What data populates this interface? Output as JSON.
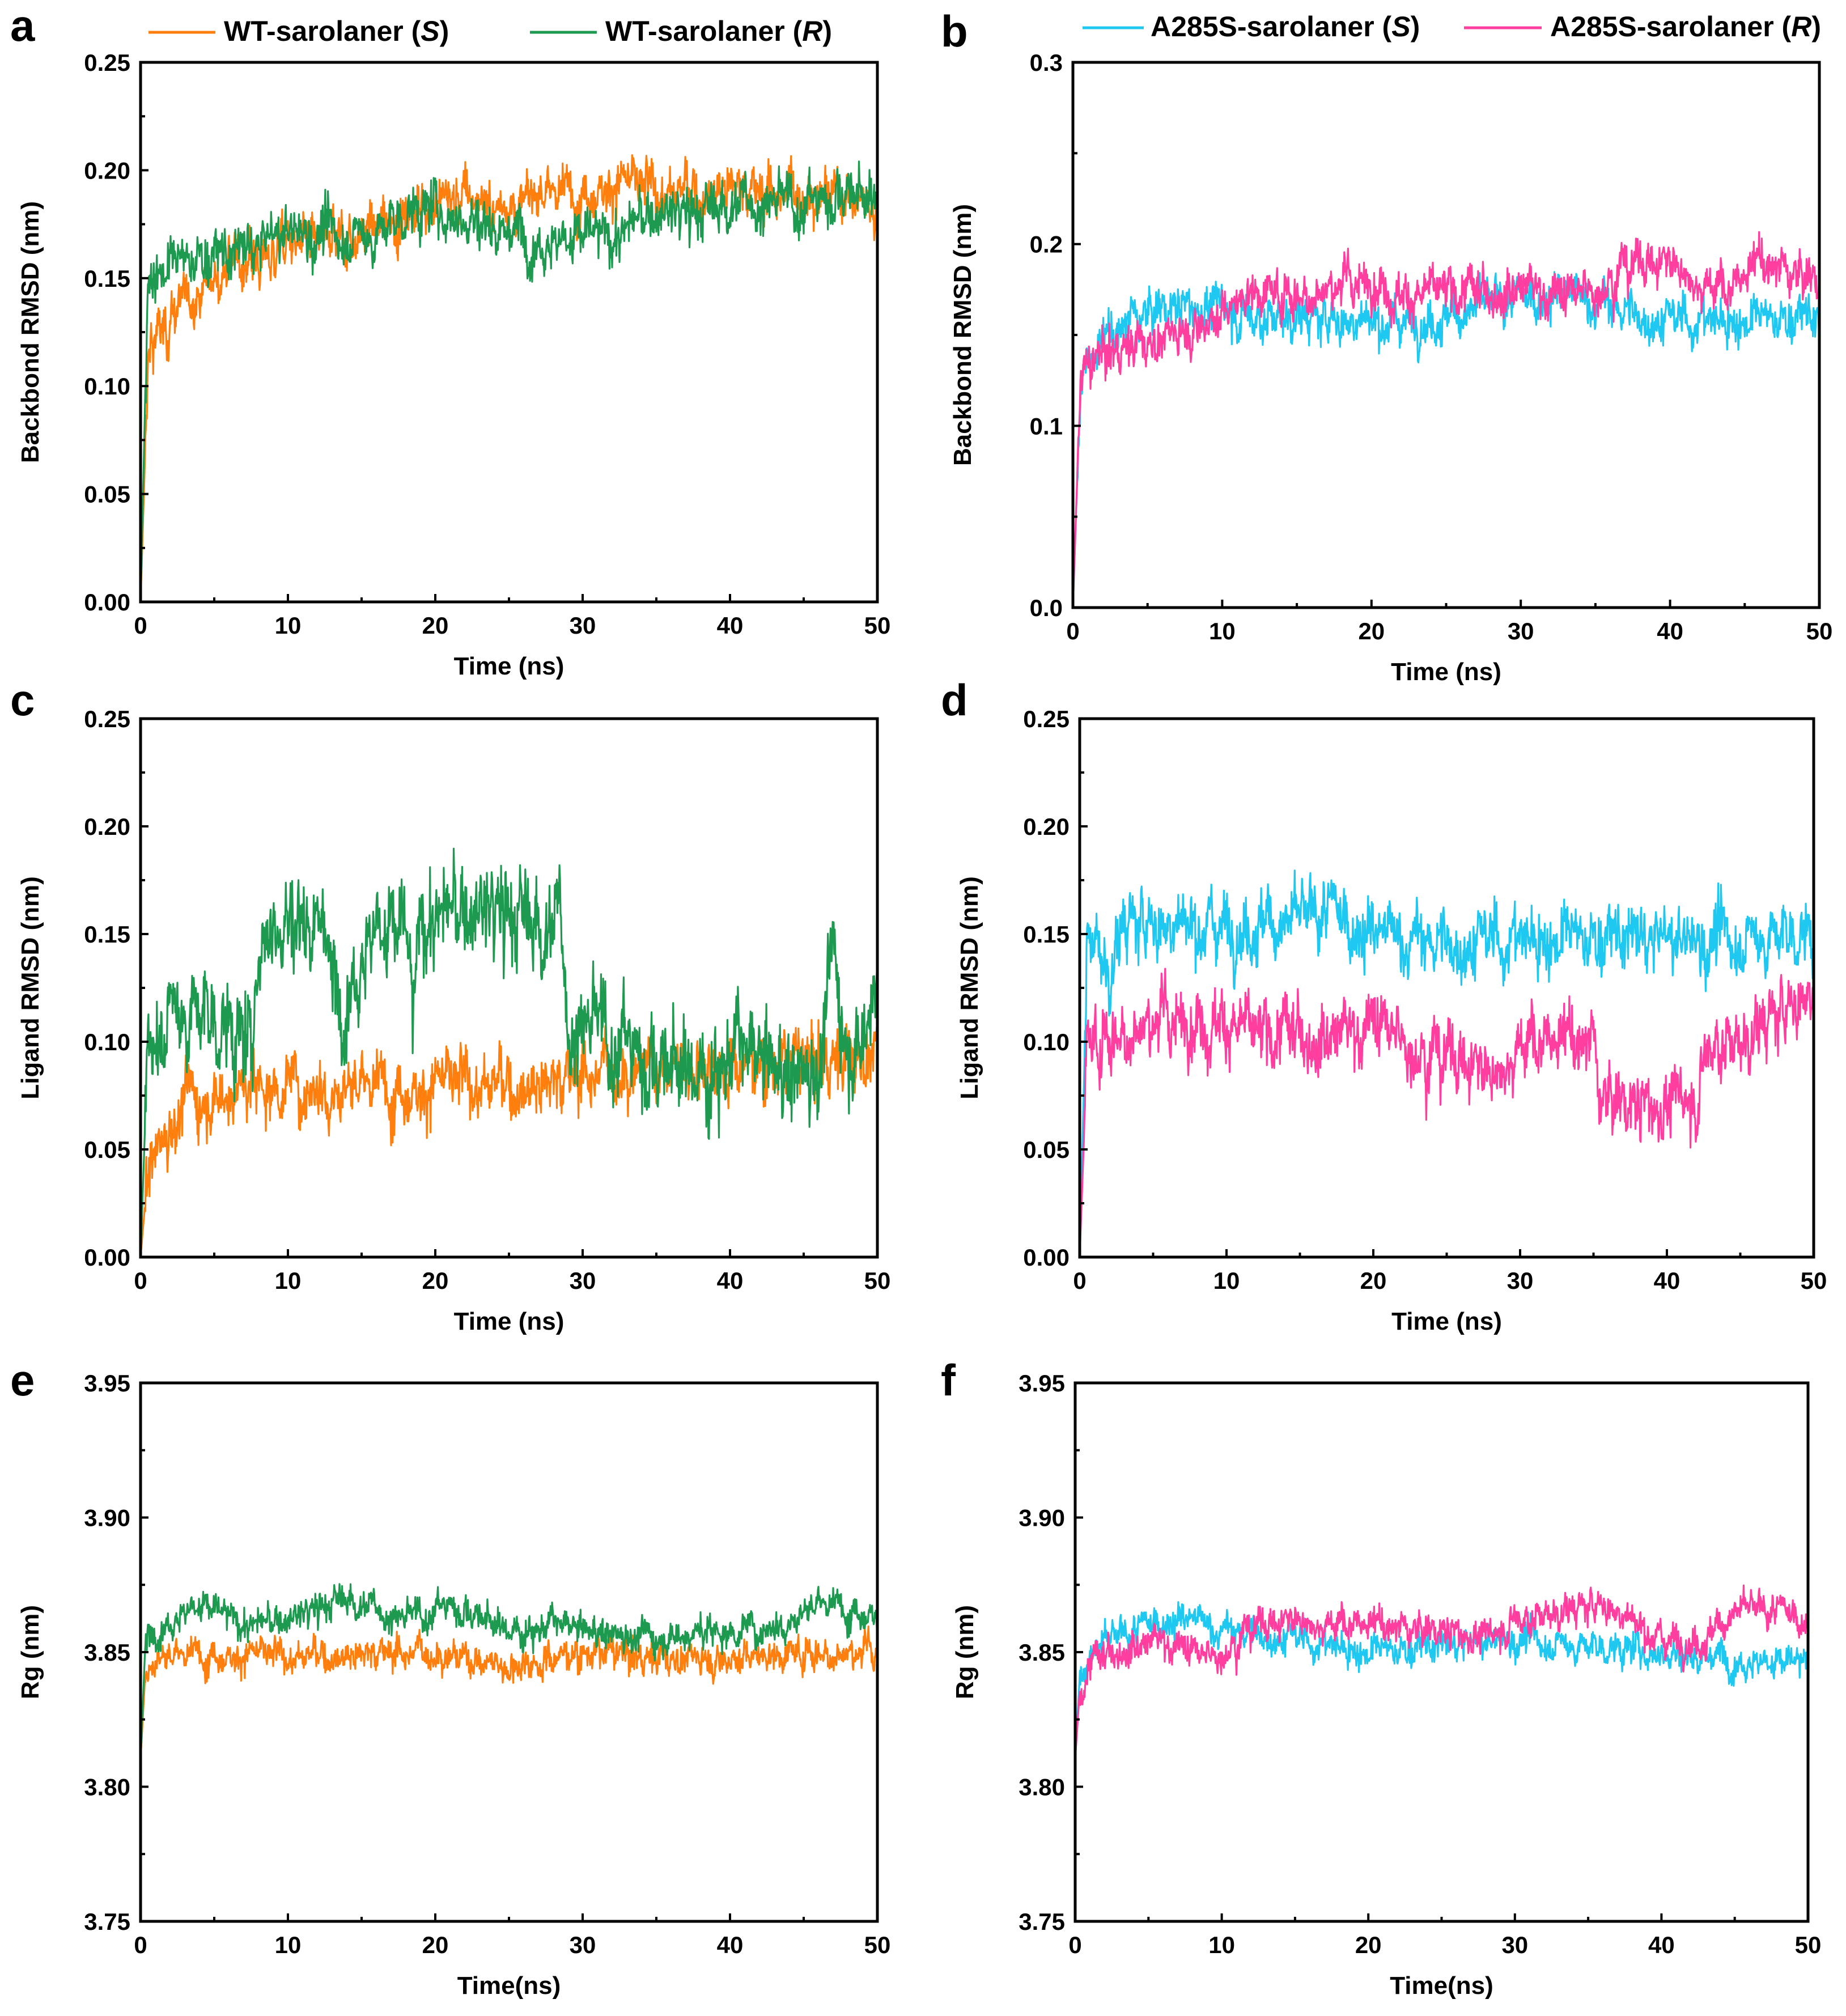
{
  "chart_data": [
    {
      "panel": "a",
      "type": "line",
      "title": "",
      "xlabel": "Time (ns)",
      "ylabel": "Backbond RMSD (nm)",
      "xlim": [
        0,
        50
      ],
      "ylim": [
        0,
        0.25
      ],
      "xticks": [
        "0",
        "10",
        "20",
        "30",
        "40",
        "50"
      ],
      "yticks": [
        "0.00",
        "0.05",
        "0.10",
        "0.15",
        "0.20",
        "0.25"
      ],
      "grid": false,
      "legend": {
        "placement": "top",
        "entries": [
          {
            "label": "WT-sarolaner (",
            "italic": "S",
            "close": ")",
            "color": "#ff7f0e"
          },
          {
            "label": "WT-sarolaner (",
            "italic": "R",
            "close": ")",
            "color": "#1e9a50"
          }
        ]
      },
      "series": [
        {
          "name": "WT-sarolaner (S)",
          "color": "#ff7f0e",
          "x": [
            0,
            0.5,
            1,
            2,
            3,
            5,
            7,
            10,
            12,
            15,
            18,
            20,
            22,
            25,
            28,
            30,
            32,
            35,
            38,
            40,
            42,
            45,
            48,
            50
          ],
          "y": [
            0.0,
            0.11,
            0.12,
            0.13,
            0.14,
            0.15,
            0.155,
            0.165,
            0.165,
            0.17,
            0.18,
            0.185,
            0.185,
            0.185,
            0.19,
            0.19,
            0.195,
            0.19,
            0.19,
            0.195,
            0.19,
            0.19,
            0.19,
            0.18
          ],
          "noise": 0.008
        },
        {
          "name": "WT-sarolaner (R)",
          "color": "#1e9a50",
          "x": [
            0,
            0.5,
            1,
            2,
            4,
            6,
            8,
            10,
            13,
            16,
            18,
            20,
            22,
            24,
            26,
            28,
            30,
            32,
            34,
            36,
            38,
            40,
            42,
            45,
            48,
            50
          ],
          "y": [
            0.0,
            0.15,
            0.155,
            0.155,
            0.16,
            0.16,
            0.165,
            0.172,
            0.17,
            0.17,
            0.18,
            0.182,
            0.178,
            0.175,
            0.17,
            0.168,
            0.17,
            0.168,
            0.178,
            0.18,
            0.18,
            0.185,
            0.185,
            0.185,
            0.19,
            0.185
          ],
          "noise": 0.008
        }
      ]
    },
    {
      "panel": "b",
      "type": "line",
      "title": "",
      "xlabel": "Time (ns)",
      "ylabel": "Backbond RMSD (nm)",
      "xlim": [
        0,
        50
      ],
      "ylim": [
        0,
        0.3
      ],
      "xticks": [
        "0",
        "10",
        "20",
        "30",
        "40",
        "50"
      ],
      "yticks": [
        "0.0",
        "0.1",
        "0.2",
        "0.3"
      ],
      "grid": false,
      "legend": {
        "placement": "top",
        "entries": [
          {
            "label": "A285S-sarolaner (",
            "italic": "S",
            "close": ")",
            "color": "#1ec8f0"
          },
          {
            "label": "A285S-sarolaner (",
            "italic": "R",
            "close": ")",
            "color": "#ff3ea0"
          }
        ]
      },
      "series": [
        {
          "name": "A285S-sarolaner (S)",
          "color": "#1ec8f0",
          "x": [
            0,
            0.5,
            1,
            2,
            4,
            6,
            8,
            10,
            12,
            15,
            18,
            20,
            25,
            30,
            33,
            35,
            38,
            40,
            45,
            50
          ],
          "y": [
            0.0,
            0.12,
            0.135,
            0.145,
            0.16,
            0.165,
            0.165,
            0.165,
            0.16,
            0.16,
            0.158,
            0.158,
            0.16,
            0.17,
            0.172,
            0.168,
            0.16,
            0.158,
            0.158,
            0.16
          ],
          "noise": 0.008
        },
        {
          "name": "A285S-sarolaner (R)",
          "color": "#ff3ea0",
          "x": [
            0,
            0.5,
            1,
            2,
            4,
            6,
            8,
            10,
            12,
            15,
            18,
            20,
            22,
            25,
            28,
            30,
            33,
            35,
            37,
            40,
            42,
            44,
            46,
            48,
            50
          ],
          "y": [
            0.0,
            0.125,
            0.13,
            0.14,
            0.145,
            0.148,
            0.155,
            0.162,
            0.175,
            0.172,
            0.178,
            0.18,
            0.172,
            0.172,
            0.175,
            0.178,
            0.172,
            0.175,
            0.19,
            0.19,
            0.18,
            0.175,
            0.19,
            0.185,
            0.18
          ],
          "noise": 0.008
        }
      ]
    },
    {
      "panel": "c",
      "type": "line",
      "title": "",
      "xlabel": "Time (ns)",
      "ylabel": "Ligand RMSD (nm)",
      "xlim": [
        0,
        50
      ],
      "ylim": [
        0,
        0.25
      ],
      "xticks": [
        "0",
        "10",
        "20",
        "30",
        "40",
        "50"
      ],
      "yticks": [
        "0.00",
        "0.05",
        "0.10",
        "0.15",
        "0.20",
        "0.25"
      ],
      "grid": false,
      "series": [
        {
          "name": "WT-sarolaner (S)",
          "color": "#ff7f0e",
          "x": [
            0,
            0.5,
            1,
            2,
            3,
            5,
            8,
            10,
            15,
            20,
            25,
            30,
            35,
            40,
            45,
            50
          ],
          "y": [
            0.0,
            0.04,
            0.05,
            0.06,
            0.075,
            0.075,
            0.08,
            0.08,
            0.08,
            0.08,
            0.08,
            0.085,
            0.09,
            0.09,
            0.09,
            0.095
          ],
          "noise": 0.01
        },
        {
          "name": "WT-sarolaner (R)",
          "color": "#1e9a50",
          "x": [
            0,
            0.5,
            1,
            3,
            5,
            7,
            7.5,
            8,
            9,
            11,
            12.5,
            13,
            14,
            16,
            18,
            18.5,
            19,
            21,
            24,
            27,
            28.5,
            29,
            31,
            33,
            35,
            38,
            40,
            42,
            44,
            46,
            47,
            48,
            49,
            50
          ],
          "y": [
            0.0,
            0.1,
            0.11,
            0.115,
            0.11,
            0.1,
            0.09,
            0.15,
            0.155,
            0.158,
            0.16,
            0.12,
            0.13,
            0.155,
            0.15,
            0.11,
            0.155,
            0.16,
            0.16,
            0.155,
            0.155,
            0.11,
            0.105,
            0.1,
            0.09,
            0.085,
            0.095,
            0.09,
            0.085,
            0.09,
            0.14,
            0.1,
            0.1,
            0.14
          ],
          "noise": 0.015
        }
      ]
    },
    {
      "panel": "d",
      "type": "line",
      "title": "",
      "xlabel": "Time (ns)",
      "ylabel": "Ligand RMSD (nm)",
      "xlim": [
        0,
        50
      ],
      "ylim": [
        0,
        0.25
      ],
      "xticks": [
        "0",
        "10",
        "20",
        "30",
        "40",
        "50"
      ],
      "yticks": [
        "0.00",
        "0.05",
        "0.10",
        "0.15",
        "0.20",
        "0.25"
      ],
      "grid": false,
      "series": [
        {
          "name": "A285S-sarolaner (S)",
          "color": "#1ec8f0",
          "x": [
            0,
            0.5,
            1,
            2,
            3,
            5,
            10,
            15,
            17,
            20,
            25,
            30,
            35,
            40,
            45,
            50
          ],
          "y": [
            0.0,
            0.14,
            0.15,
            0.13,
            0.155,
            0.155,
            0.155,
            0.155,
            0.16,
            0.15,
            0.145,
            0.148,
            0.148,
            0.147,
            0.148,
            0.15
          ],
          "noise": 0.01
        },
        {
          "name": "A285S-sarolaner (R)",
          "color": "#ff3ea0",
          "x": [
            0,
            0.5,
            1,
            3,
            5,
            8,
            10,
            12,
            15,
            18,
            20,
            22,
            25,
            28,
            30,
            33,
            35,
            35.5,
            38,
            40,
            42,
            43,
            45,
            48,
            50
          ],
          "y": [
            0.0,
            0.095,
            0.1,
            0.105,
            0.11,
            0.11,
            0.11,
            0.1,
            0.105,
            0.105,
            0.11,
            0.1,
            0.095,
            0.085,
            0.1,
            0.1,
            0.1,
            0.075,
            0.07,
            0.07,
            0.075,
            0.1,
            0.1,
            0.115,
            0.125
          ],
          "noise": 0.01
        }
      ]
    },
    {
      "panel": "e",
      "type": "line",
      "title": "",
      "xlabel": "Time(ns)",
      "ylabel": "Rg (nm)",
      "xlim": [
        0,
        50
      ],
      "ylim": [
        3.75,
        3.95
      ],
      "xticks": [
        "0",
        "10",
        "20",
        "30",
        "40",
        "50"
      ],
      "yticks": [
        "3.75",
        "3.80",
        "3.85",
        "3.90",
        "3.95"
      ],
      "grid": false,
      "series": [
        {
          "name": "WT-sarolaner (S)",
          "color": "#ff7f0e",
          "x": [
            0,
            0.3,
            1,
            5,
            10,
            15,
            20,
            25,
            30,
            35,
            40,
            45,
            50
          ],
          "y": [
            3.81,
            3.84,
            3.848,
            3.85,
            3.848,
            3.85,
            3.85,
            3.845,
            3.85,
            3.848,
            3.848,
            3.85,
            3.85
          ],
          "noise": 0.004
        },
        {
          "name": "WT-sarolaner (R)",
          "color": "#1e9a50",
          "x": [
            0,
            0.3,
            1,
            4,
            7,
            10,
            14,
            18,
            21,
            25,
            28,
            30,
            35,
            40,
            43,
            46,
            50
          ],
          "y": [
            3.81,
            3.85,
            3.86,
            3.868,
            3.86,
            3.862,
            3.87,
            3.862,
            3.868,
            3.858,
            3.86,
            3.858,
            3.856,
            3.858,
            3.86,
            3.868,
            3.865
          ],
          "noise": 0.004
        }
      ]
    },
    {
      "panel": "f",
      "type": "line",
      "title": "",
      "xlabel": "Time(ns)",
      "ylabel": "Rg (nm)",
      "xlim": [
        0,
        50
      ],
      "ylim": [
        3.75,
        3.95
      ],
      "xticks": [
        "0",
        "10",
        "20",
        "30",
        "40",
        "50"
      ],
      "yticks": [
        "3.75",
        "3.80",
        "3.85",
        "3.90",
        "3.95"
      ],
      "grid": false,
      "series": [
        {
          "name": "A285S-sarolaner (S)",
          "color": "#1ec8f0",
          "x": [
            0,
            0.3,
            1,
            3,
            6,
            8,
            10,
            15,
            20,
            25,
            30,
            35,
            40,
            45,
            50
          ],
          "y": [
            3.81,
            3.84,
            3.85,
            3.855,
            3.862,
            3.862,
            3.858,
            3.855,
            3.85,
            3.852,
            3.855,
            3.852,
            3.85,
            3.848,
            3.845
          ],
          "noise": 0.004
        },
        {
          "name": "A285S-sarolaner (R)",
          "color": "#ff3ea0",
          "x": [
            0,
            0.3,
            1,
            3,
            6,
            9,
            10,
            12,
            15,
            20,
            25,
            28,
            30,
            33,
            36,
            38,
            40,
            43,
            45,
            48,
            50
          ],
          "y": [
            3.81,
            3.835,
            3.845,
            3.852,
            3.855,
            3.848,
            3.85,
            3.86,
            3.862,
            3.86,
            3.858,
            3.855,
            3.862,
            3.865,
            3.868,
            3.862,
            3.855,
            3.855,
            3.865,
            3.865,
            3.862
          ],
          "noise": 0.004
        }
      ]
    }
  ]
}
